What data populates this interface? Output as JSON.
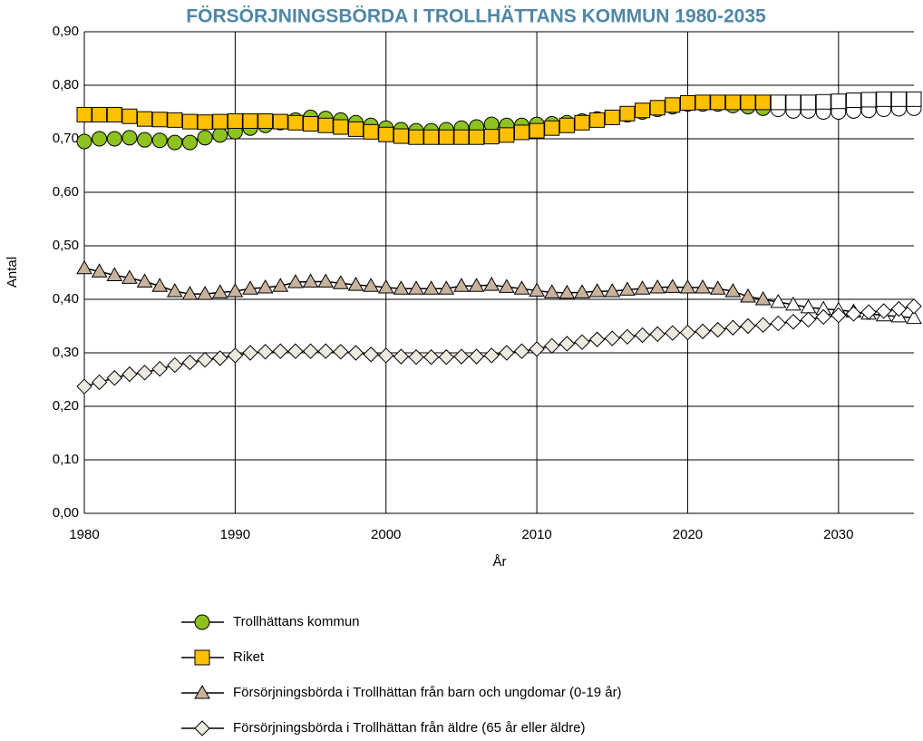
{
  "chart_data": {
    "type": "line",
    "title": "FÖRSÖRJNINGSBÖRDA I TROLLHÄTTANS KOMMUN 1980-2035",
    "x_label": "År",
    "y_label": "Antal",
    "x": [
      1980,
      1981,
      1982,
      1983,
      1984,
      1985,
      1986,
      1987,
      1988,
      1989,
      1990,
      1991,
      1992,
      1993,
      1994,
      1995,
      1996,
      1997,
      1998,
      1999,
      2000,
      2001,
      2002,
      2003,
      2004,
      2005,
      2006,
      2007,
      2008,
      2009,
      2010,
      2011,
      2012,
      2013,
      2014,
      2015,
      2016,
      2017,
      2018,
      2019,
      2020,
      2021,
      2022,
      2023,
      2024,
      2025,
      2026,
      2027,
      2028,
      2029,
      2030,
      2031,
      2032,
      2033,
      2034,
      2035
    ],
    "xlim": [
      1980,
      2035
    ],
    "xticks": [
      1980,
      1990,
      2000,
      2010,
      2020,
      2030
    ],
    "ylim": [
      0,
      0.9
    ],
    "yticks": [
      {
        "value": 0,
        "label": "0,00"
      },
      {
        "value": 0.1,
        "label": "0,10"
      },
      {
        "value": 0.2,
        "label": "0,20"
      },
      {
        "value": 0.3,
        "label": "0,30"
      },
      {
        "value": 0.4,
        "label": "0,40"
      },
      {
        "value": 0.5,
        "label": "0,50"
      },
      {
        "value": 0.6,
        "label": "0,60"
      },
      {
        "value": 0.7,
        "label": "0,70"
      },
      {
        "value": 0.8,
        "label": "0,80"
      },
      {
        "value": 0.9,
        "label": "0,90"
      }
    ],
    "grid": true,
    "line_color": "#000000",
    "forecast_from": 2026,
    "forecast_color": "#ffffff",
    "series": [
      {
        "name": "Trollhättans kommun",
        "marker": "circle",
        "color": "#8dc21f",
        "values": [
          0.695,
          0.7,
          0.7,
          0.702,
          0.698,
          0.697,
          0.693,
          0.693,
          0.702,
          0.707,
          0.713,
          0.72,
          0.725,
          0.73,
          0.735,
          0.74,
          0.738,
          0.735,
          0.73,
          0.725,
          0.72,
          0.717,
          0.715,
          0.715,
          0.717,
          0.72,
          0.722,
          0.727,
          0.725,
          0.725,
          0.727,
          0.728,
          0.73,
          0.733,
          0.737,
          0.74,
          0.745,
          0.75,
          0.755,
          0.76,
          0.765,
          0.765,
          0.765,
          0.762,
          0.76,
          0.757,
          0.755,
          0.752,
          0.752,
          0.75,
          0.75,
          0.752,
          0.753,
          0.755,
          0.756,
          0.757
        ]
      },
      {
        "name": "Riket",
        "marker": "square",
        "color": "#ffc000",
        "values": [
          0.745,
          0.745,
          0.745,
          0.742,
          0.737,
          0.736,
          0.735,
          0.732,
          0.731,
          0.732,
          0.733,
          0.733,
          0.733,
          0.732,
          0.73,
          0.728,
          0.725,
          0.722,
          0.718,
          0.713,
          0.708,
          0.705,
          0.703,
          0.703,
          0.703,
          0.703,
          0.703,
          0.704,
          0.707,
          0.712,
          0.715,
          0.72,
          0.725,
          0.73,
          0.735,
          0.74,
          0.747,
          0.753,
          0.758,
          0.763,
          0.767,
          0.768,
          0.768,
          0.768,
          0.768,
          0.768,
          0.768,
          0.768,
          0.768,
          0.769,
          0.77,
          0.772,
          0.773,
          0.774,
          0.774,
          0.774
        ]
      },
      {
        "name": "Försörjningsbörda i Trollhättan från barn och ungdomar (0-19 år)",
        "marker": "triangle",
        "color": "#c9b29b",
        "values": [
          0.458,
          0.452,
          0.445,
          0.44,
          0.433,
          0.425,
          0.415,
          0.41,
          0.41,
          0.413,
          0.415,
          0.42,
          0.422,
          0.425,
          0.432,
          0.433,
          0.433,
          0.43,
          0.427,
          0.425,
          0.422,
          0.42,
          0.42,
          0.42,
          0.42,
          0.425,
          0.425,
          0.427,
          0.423,
          0.42,
          0.416,
          0.413,
          0.412,
          0.413,
          0.415,
          0.415,
          0.418,
          0.42,
          0.422,
          0.423,
          0.422,
          0.422,
          0.42,
          0.415,
          0.405,
          0.4,
          0.395,
          0.39,
          0.385,
          0.382,
          0.38,
          0.377,
          0.373,
          0.37,
          0.368,
          0.365
        ]
      },
      {
        "name": "Försörjningsbörda i Trollhättan från äldre (65 år eller äldre)",
        "marker": "diamond",
        "color": "#eeeae0",
        "values": [
          0.237,
          0.245,
          0.253,
          0.26,
          0.263,
          0.27,
          0.277,
          0.282,
          0.287,
          0.29,
          0.295,
          0.3,
          0.302,
          0.303,
          0.303,
          0.303,
          0.303,
          0.302,
          0.3,
          0.297,
          0.295,
          0.293,
          0.292,
          0.292,
          0.292,
          0.293,
          0.293,
          0.295,
          0.3,
          0.303,
          0.307,
          0.313,
          0.317,
          0.32,
          0.325,
          0.327,
          0.33,
          0.333,
          0.335,
          0.337,
          0.338,
          0.34,
          0.343,
          0.347,
          0.35,
          0.352,
          0.355,
          0.358,
          0.362,
          0.367,
          0.37,
          0.373,
          0.376,
          0.378,
          0.382,
          0.387
        ]
      }
    ]
  }
}
